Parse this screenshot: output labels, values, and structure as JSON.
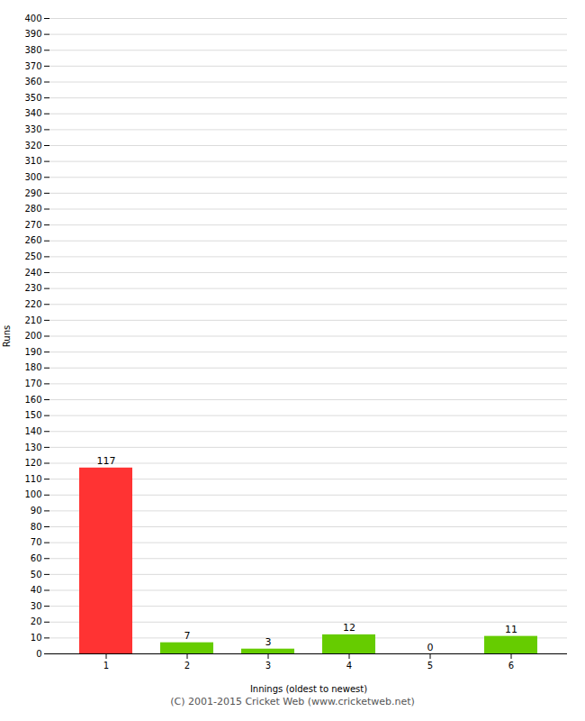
{
  "chart_data": {
    "type": "bar",
    "xlabel": "Innings (oldest to newest)",
    "ylabel": "Runs",
    "categories": [
      1,
      2,
      3,
      4,
      5,
      6
    ],
    "values": [
      117,
      7,
      3,
      12,
      0,
      11
    ],
    "colors": [
      "#ff3333",
      "#66cc00",
      "#66cc00",
      "#66cc00",
      "#66cc00",
      "#66cc00"
    ],
    "ylim": [
      0,
      400
    ],
    "yticks": [
      0,
      10,
      20,
      30,
      40,
      50,
      60,
      70,
      80,
      90,
      100,
      110,
      120,
      130,
      140,
      150,
      160,
      170,
      180,
      190,
      200,
      210,
      220,
      230,
      240,
      250,
      260,
      270,
      280,
      290,
      300,
      310,
      320,
      330,
      340,
      350,
      360,
      370,
      380,
      390,
      400
    ],
    "grid": true,
    "data_labels": true,
    "footer": "(C) 2001-2015 Cricket Web (www.cricketweb.net)"
  }
}
